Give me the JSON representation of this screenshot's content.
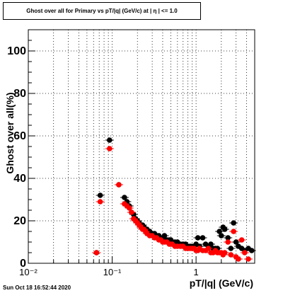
{
  "chart_data": {
    "type": "scatter",
    "title": "Ghost over all for Primary vs pT/|q| (GeV/c) at | η | <= 1.0",
    "xlabel": "pT/|q| (GeV/c)",
    "ylabel": "Ghost over all(%)",
    "xscale": "log",
    "xlim": [
      0.01,
      5.0
    ],
    "ylim": [
      0,
      110
    ],
    "x_tick_labels": [
      "10⁻²",
      "10⁻¹",
      "1"
    ],
    "y_tick_labels": [
      "0",
      "20",
      "40",
      "60",
      "80",
      "100"
    ],
    "grid": true,
    "legend": "none",
    "colors": {
      "series_black": "#000000",
      "series_red": "#ff0000"
    },
    "series": [
      {
        "color": "#000000",
        "points": [
          [
            0.065,
            5
          ],
          [
            0.072,
            32
          ],
          [
            0.093,
            58
          ],
          [
            0.12,
            37
          ],
          [
            0.14,
            31
          ],
          [
            0.15,
            29
          ],
          [
            0.16,
            27
          ],
          [
            0.17,
            24
          ],
          [
            0.18,
            23
          ],
          [
            0.19,
            21
          ],
          [
            0.2,
            20
          ],
          [
            0.21,
            19
          ],
          [
            0.22,
            18
          ],
          [
            0.23,
            18
          ],
          [
            0.24,
            17
          ],
          [
            0.25,
            16
          ],
          [
            0.26,
            16
          ],
          [
            0.28,
            15
          ],
          [
            0.3,
            14
          ],
          [
            0.32,
            14
          ],
          [
            0.34,
            13
          ],
          [
            0.36,
            13
          ],
          [
            0.38,
            12
          ],
          [
            0.4,
            12
          ],
          [
            0.42,
            13
          ],
          [
            0.45,
            11
          ],
          [
            0.48,
            11
          ],
          [
            0.5,
            11
          ],
          [
            0.52,
            10
          ],
          [
            0.56,
            10
          ],
          [
            0.6,
            10
          ],
          [
            0.65,
            9
          ],
          [
            0.7,
            9
          ],
          [
            0.75,
            9
          ],
          [
            0.8,
            8
          ],
          [
            0.85,
            8
          ],
          [
            0.9,
            8
          ],
          [
            0.95,
            8
          ],
          [
            1.0,
            9
          ],
          [
            1.05,
            12
          ],
          [
            1.1,
            8
          ],
          [
            1.2,
            12
          ],
          [
            1.3,
            9
          ],
          [
            1.4,
            8
          ],
          [
            1.5,
            9
          ],
          [
            1.6,
            7
          ],
          [
            1.7,
            7
          ],
          [
            1.8,
            7
          ],
          [
            1.9,
            15
          ],
          [
            2.0,
            13
          ],
          [
            2.1,
            17
          ],
          [
            2.2,
            16
          ],
          [
            2.4,
            12
          ],
          [
            2.6,
            7
          ],
          [
            2.8,
            19
          ],
          [
            3.0,
            10
          ],
          [
            3.2,
            8
          ],
          [
            3.5,
            7
          ],
          [
            3.8,
            6
          ],
          [
            4.2,
            7
          ],
          [
            4.6,
            6
          ]
        ]
      },
      {
        "color": "#ff0000",
        "points": [
          [
            0.065,
            5
          ],
          [
            0.072,
            29
          ],
          [
            0.093,
            54
          ],
          [
            0.12,
            37
          ],
          [
            0.14,
            28
          ],
          [
            0.15,
            27
          ],
          [
            0.16,
            26
          ],
          [
            0.17,
            24
          ],
          [
            0.18,
            21
          ],
          [
            0.19,
            20
          ],
          [
            0.2,
            19
          ],
          [
            0.21,
            18
          ],
          [
            0.22,
            17
          ],
          [
            0.23,
            16
          ],
          [
            0.24,
            16
          ],
          [
            0.25,
            15
          ],
          [
            0.26,
            14
          ],
          [
            0.28,
            13
          ],
          [
            0.3,
            13
          ],
          [
            0.32,
            12
          ],
          [
            0.34,
            12
          ],
          [
            0.36,
            11
          ],
          [
            0.38,
            11
          ],
          [
            0.4,
            10
          ],
          [
            0.42,
            10
          ],
          [
            0.45,
            10
          ],
          [
            0.48,
            9
          ],
          [
            0.5,
            9
          ],
          [
            0.52,
            9
          ],
          [
            0.56,
            8
          ],
          [
            0.6,
            8
          ],
          [
            0.65,
            8
          ],
          [
            0.7,
            8
          ],
          [
            0.75,
            7
          ],
          [
            0.8,
            7
          ],
          [
            0.85,
            7
          ],
          [
            0.9,
            7
          ],
          [
            0.95,
            7
          ],
          [
            1.0,
            6
          ],
          [
            1.05,
            6
          ],
          [
            1.1,
            7
          ],
          [
            1.2,
            6
          ],
          [
            1.3,
            6
          ],
          [
            1.4,
            7
          ],
          [
            1.5,
            5
          ],
          [
            1.6,
            5
          ],
          [
            1.7,
            6
          ],
          [
            1.8,
            5
          ],
          [
            1.9,
            5
          ],
          [
            2.0,
            5
          ],
          [
            2.1,
            4
          ],
          [
            2.2,
            5
          ],
          [
            2.4,
            10
          ],
          [
            2.6,
            4
          ],
          [
            2.8,
            15
          ],
          [
            3.0,
            3
          ],
          [
            3.2,
            2
          ],
          [
            3.5,
            11
          ],
          [
            3.8,
            5
          ],
          [
            4.2,
            2
          ]
        ]
      }
    ]
  },
  "footer": {
    "timestamp": "Sun Oct 18 16:52:44 2020"
  }
}
